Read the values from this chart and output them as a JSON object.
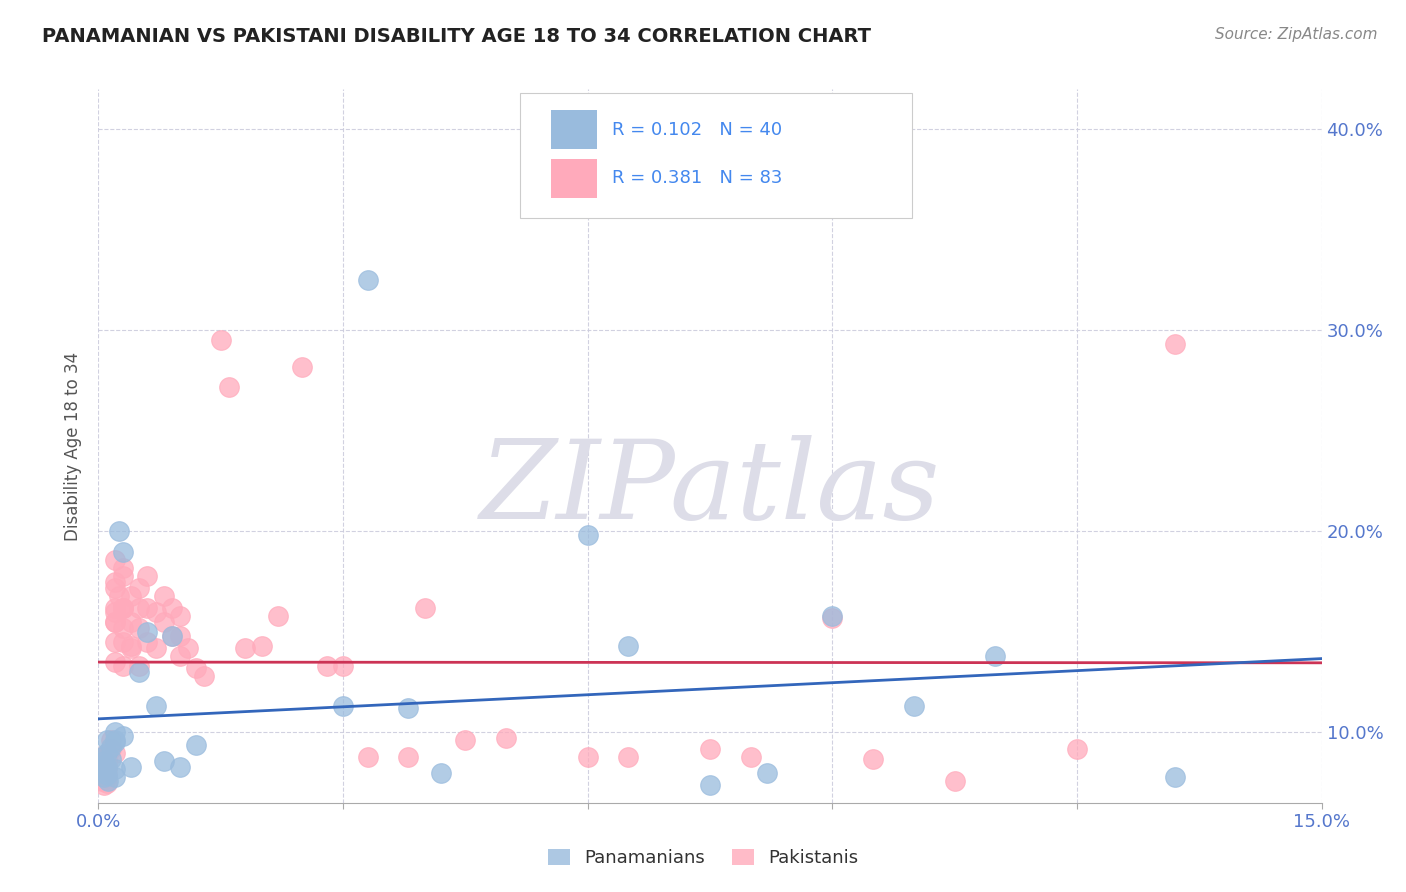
{
  "title": "PANAMANIAN VS PAKISTANI DISABILITY AGE 18 TO 34 CORRELATION CHART",
  "source": "Source: ZipAtlas.com",
  "xlim": [
    0.0,
    0.15
  ],
  "ylim": [
    0.065,
    0.42
  ],
  "panamanian_R": 0.102,
  "panamanian_N": 40,
  "pakistani_R": 0.381,
  "pakistani_N": 83,
  "blue_scatter_color": "#99BBDD",
  "pink_scatter_color": "#FFAABB",
  "blue_line_color": "#3366BB",
  "pink_line_color": "#CC3355",
  "legend_text_color": "#4488EE",
  "watermark_color": "#DDDDE8",
  "background_color": "#FFFFFF",
  "grid_color": "#CCCCDD",
  "axis_label_color": "#5577CC",
  "ylabel_text": "Disability Age 18 to 34",
  "panamanian_x": [
    0.0005,
    0.0006,
    0.0007,
    0.0007,
    0.0008,
    0.001,
    0.001,
    0.001,
    0.001,
    0.0012,
    0.0015,
    0.0015,
    0.002,
    0.002,
    0.002,
    0.002,
    0.002,
    0.0025,
    0.003,
    0.003,
    0.004,
    0.005,
    0.006,
    0.007,
    0.008,
    0.009,
    0.01,
    0.012,
    0.03,
    0.033,
    0.038,
    0.042,
    0.06,
    0.065,
    0.075,
    0.082,
    0.09,
    0.1,
    0.11,
    0.132
  ],
  "panamanian_y": [
    0.088,
    0.082,
    0.086,
    0.078,
    0.084,
    0.09,
    0.083,
    0.096,
    0.079,
    0.076,
    0.087,
    0.093,
    0.095,
    0.082,
    0.078,
    0.1,
    0.096,
    0.2,
    0.098,
    0.19,
    0.083,
    0.13,
    0.15,
    0.113,
    0.086,
    0.148,
    0.083,
    0.094,
    0.113,
    0.325,
    0.112,
    0.08,
    0.198,
    0.143,
    0.074,
    0.08,
    0.158,
    0.113,
    0.138,
    0.078
  ],
  "pakistani_x": [
    0.0003,
    0.0004,
    0.0005,
    0.0006,
    0.0007,
    0.0007,
    0.0008,
    0.0009,
    0.001,
    0.001,
    0.001,
    0.001,
    0.001,
    0.001,
    0.001,
    0.001,
    0.001,
    0.0015,
    0.0015,
    0.002,
    0.002,
    0.002,
    0.002,
    0.002,
    0.002,
    0.002,
    0.002,
    0.002,
    0.002,
    0.0025,
    0.003,
    0.003,
    0.003,
    0.003,
    0.003,
    0.003,
    0.003,
    0.003,
    0.004,
    0.004,
    0.004,
    0.004,
    0.005,
    0.005,
    0.005,
    0.005,
    0.006,
    0.006,
    0.006,
    0.007,
    0.007,
    0.008,
    0.008,
    0.009,
    0.009,
    0.01,
    0.01,
    0.01,
    0.011,
    0.012,
    0.013,
    0.015,
    0.016,
    0.018,
    0.02,
    0.022,
    0.025,
    0.028,
    0.03,
    0.033,
    0.038,
    0.04,
    0.045,
    0.05,
    0.06,
    0.065,
    0.075,
    0.08,
    0.09,
    0.095,
    0.105,
    0.12,
    0.132
  ],
  "pakistani_y": [
    0.083,
    0.08,
    0.076,
    0.088,
    0.074,
    0.086,
    0.082,
    0.078,
    0.084,
    0.079,
    0.087,
    0.082,
    0.078,
    0.09,
    0.075,
    0.086,
    0.083,
    0.092,
    0.096,
    0.09,
    0.186,
    0.172,
    0.162,
    0.155,
    0.16,
    0.145,
    0.135,
    0.175,
    0.155,
    0.168,
    0.178,
    0.162,
    0.152,
    0.133,
    0.182,
    0.162,
    0.145,
    0.162,
    0.142,
    0.168,
    0.155,
    0.143,
    0.172,
    0.162,
    0.152,
    0.133,
    0.178,
    0.162,
    0.145,
    0.16,
    0.142,
    0.168,
    0.155,
    0.162,
    0.148,
    0.138,
    0.148,
    0.158,
    0.142,
    0.132,
    0.128,
    0.295,
    0.272,
    0.142,
    0.143,
    0.158,
    0.282,
    0.133,
    0.133,
    0.088,
    0.088,
    0.162,
    0.096,
    0.097,
    0.088,
    0.088,
    0.092,
    0.088,
    0.157,
    0.087,
    0.076,
    0.092,
    0.293
  ]
}
